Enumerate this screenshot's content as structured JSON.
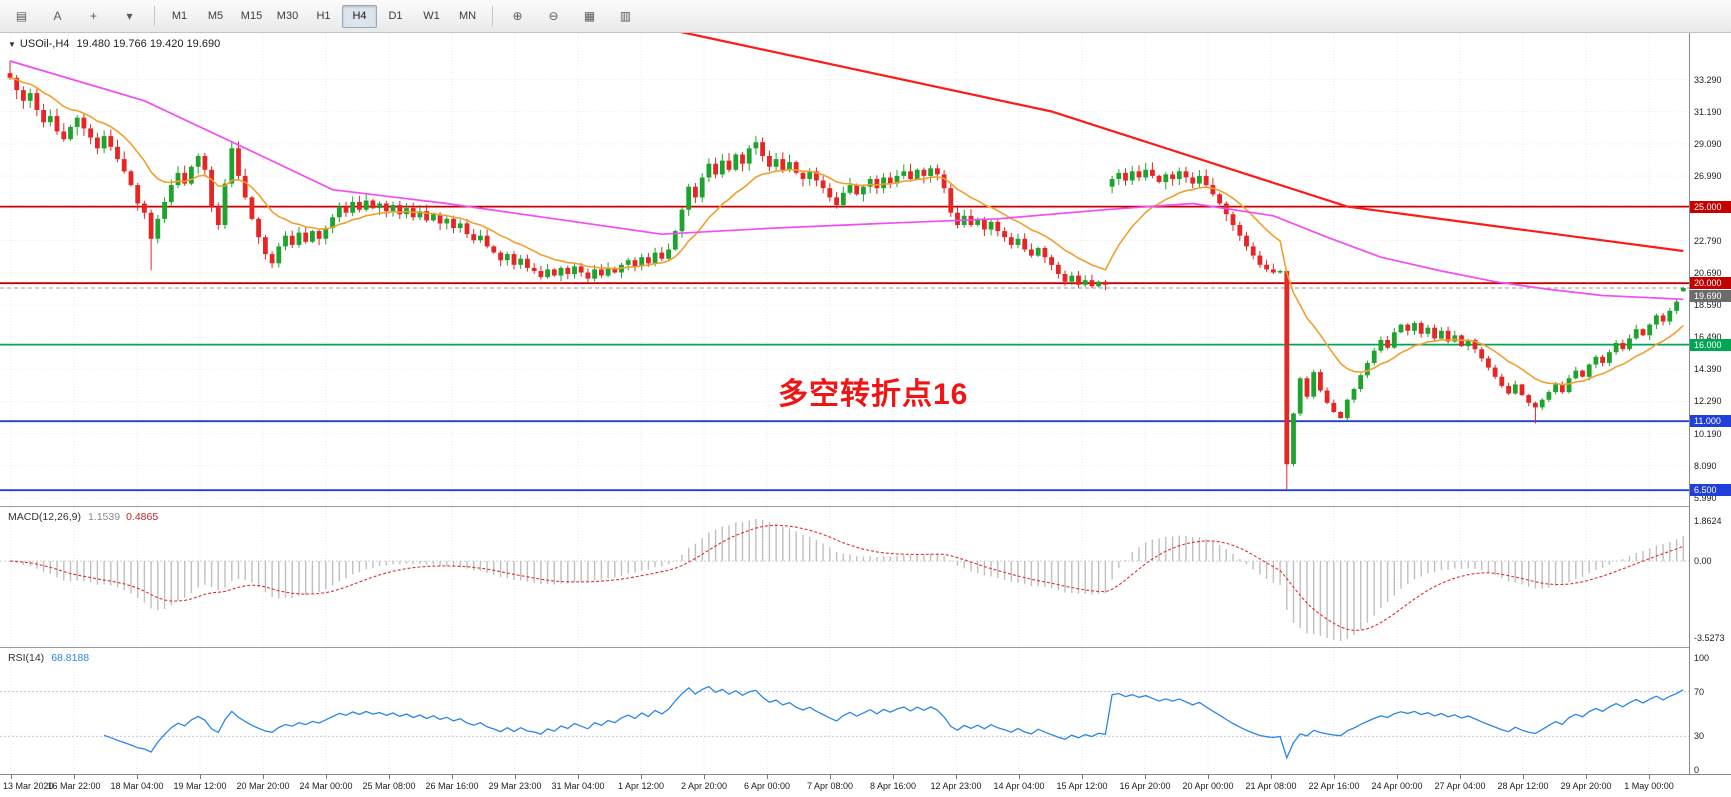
{
  "toolbar": {
    "tools_left": [
      {
        "name": "charts-toolbar-icon",
        "glyph": "▤"
      },
      {
        "name": "text-label-tool-icon",
        "glyph": "A"
      },
      {
        "name": "crosshair-tool-icon",
        "glyph": "+"
      },
      {
        "name": "line-studies-dropdown-icon",
        "glyph": "▾"
      }
    ],
    "timeframes": [
      "M1",
      "M5",
      "M15",
      "M30",
      "H1",
      "H4",
      "D1",
      "W1",
      "MN"
    ],
    "active_timeframe": "H4",
    "tools_right": [
      {
        "name": "zoom-in-icon",
        "glyph": "⊕"
      },
      {
        "name": "zoom-out-icon",
        "glyph": "⊖"
      },
      {
        "name": "indicators-icon",
        "glyph": "▦"
      },
      {
        "name": "templates-icon",
        "glyph": "▥"
      }
    ]
  },
  "chart": {
    "symbol_label": "USOil-,H4",
    "ohlc": "19.480 19.766 19.420 19.690",
    "annotation": "多空转折点16",
    "annotation_color": "#f01414"
  },
  "chart_data": {
    "type": "candlestick",
    "title": "USOil-,H4",
    "x_labels": [
      "13 Mar 2020",
      "16 Mar 22:00",
      "18 Mar 04:00",
      "19 Mar 12:00",
      "20 Mar 20:00",
      "24 Mar 00:00",
      "25 Mar 08:00",
      "26 Mar 16:00",
      "29 Mar 23:00",
      "31 Mar 04:00",
      "1 Apr 12:00",
      "2 Apr 20:00",
      "6 Apr 00:00",
      "7 Apr 08:00",
      "8 Apr 16:00",
      "12 Apr 23:00",
      "14 Apr 04:00",
      "15 Apr 12:00",
      "16 Apr 20:00",
      "20 Apr 00:00",
      "21 Apr 08:00",
      "22 Apr 16:00",
      "24 Apr 00:00",
      "27 Apr 04:00",
      "28 Apr 12:00",
      "29 Apr 20:00",
      "1 May 00:00"
    ],
    "y_ticks": [
      "33.290",
      "31.190",
      "29.090",
      "26.990",
      "24.890",
      "22.790",
      "20.690",
      "18.590",
      "16.490",
      "14.390",
      "12.290",
      "10.190",
      "8.090",
      "5.990"
    ],
    "ylim": [
      5.8,
      36.3
    ],
    "closes": [
      33.4,
      32.6,
      31.9,
      32.4,
      31.3,
      30.5,
      30.9,
      29.9,
      29.4,
      30.2,
      30.8,
      30.1,
      29.5,
      28.8,
      29.6,
      28.9,
      28.1,
      27.3,
      26.4,
      25.2,
      24.6,
      22.9,
      24.2,
      25.3,
      26.4,
      27.2,
      26.5,
      27.6,
      28.3,
      27.4,
      25.0,
      23.8,
      26.5,
      28.8,
      27.0,
      25.6,
      24.2,
      23.0,
      21.9,
      21.3,
      22.4,
      23.1,
      22.5,
      23.3,
      22.7,
      23.4,
      22.9,
      23.6,
      24.3,
      25.0,
      24.6,
      25.3,
      24.8,
      25.4,
      24.9,
      25.2,
      24.7,
      25.1,
      24.5,
      24.9,
      24.3,
      24.7,
      24.1,
      24.5,
      23.9,
      24.2,
      23.6,
      23.9,
      23.2,
      22.8,
      23.1,
      22.4,
      22.0,
      21.5,
      21.9,
      21.2,
      21.6,
      21.0,
      20.8,
      20.4,
      20.9,
      20.5,
      21.0,
      20.6,
      21.1,
      20.7,
      20.3,
      20.9,
      20.5,
      21.0,
      20.7,
      21.2,
      21.5,
      21.1,
      21.7,
      21.3,
      22.0,
      21.6,
      22.2,
      23.4,
      24.8,
      26.3,
      25.6,
      26.9,
      27.8,
      27.1,
      28.0,
      27.4,
      28.4,
      27.8,
      28.8,
      29.2,
      28.3,
      27.6,
      28.1,
      27.4,
      27.9,
      27.2,
      26.8,
      27.3,
      26.7,
      26.2,
      25.6,
      25.1,
      25.9,
      26.4,
      25.8,
      26.3,
      26.8,
      26.2,
      26.9,
      26.5,
      27.0,
      27.3,
      26.8,
      27.4,
      27.0,
      27.5,
      27.1,
      26.2,
      24.6,
      23.8,
      24.4,
      23.8,
      24.2,
      23.5,
      24.0,
      23.4,
      23.0,
      22.5,
      22.9,
      22.2,
      21.8,
      22.3,
      21.7,
      21.2,
      20.6,
      20.1,
      20.5,
      19.9,
      20.2,
      19.8,
      20.1,
      19.9,
      26.8,
      27.2,
      26.7,
      27.3,
      26.9,
      27.4,
      27.0,
      26.6,
      27.1,
      26.8,
      27.3,
      26.9,
      26.5,
      27.0,
      26.4,
      25.8,
      25.2,
      24.5,
      23.8,
      23.1,
      22.4,
      21.8,
      21.2,
      20.9,
      20.7,
      20.8,
      8.2,
      11.5,
      13.8,
      12.6,
      14.2,
      13.0,
      12.2,
      11.6,
      11.2,
      12.4,
      13.1,
      14.0,
      14.8,
      15.6,
      16.3,
      15.8,
      16.8,
      17.3,
      16.9,
      17.4,
      16.7,
      17.1,
      16.4,
      16.9,
      16.2,
      16.6,
      15.9,
      16.3,
      15.7,
      15.1,
      14.5,
      13.9,
      13.3,
      12.8,
      13.4,
      12.7,
      12.2,
      11.9,
      12.4,
      12.9,
      13.4,
      12.9,
      13.8,
      14.3,
      13.9,
      14.7,
      15.2,
      14.8,
      15.5,
      16.1,
      15.7,
      16.4,
      17.0,
      16.6,
      17.3,
      17.9,
      17.5,
      18.2,
      18.8,
      19.69
    ],
    "overrides": {
      "0": {
        "h": 34.5
      },
      "21": {
        "l": 20.85
      },
      "111": {
        "h": 29.62
      },
      "164": {
        "o": 26.3
      },
      "190": {
        "l": 6.56
      },
      "227": {
        "l": 10.85
      },
      "249": {
        "o": 19.48,
        "h": 19.766,
        "l": 19.42
      }
    },
    "candle_colors": {
      "up": "#1ea32e",
      "down": "#e62525"
    },
    "hlines": [
      {
        "value": 25.0,
        "label": "25.000",
        "color": "#c40000"
      },
      {
        "value": 20.0,
        "label": "20.000",
        "color": "#c40000"
      },
      {
        "value": 16.0,
        "label": "16.000",
        "color": "#00a651"
      },
      {
        "value": 11.0,
        "label": "11.000",
        "color": "#1f3fd8"
      },
      {
        "value": 6.5,
        "label": "6.500",
        "color": "#1f3fd8"
      }
    ],
    "current_price": {
      "value": 19.69,
      "label": "19.690",
      "color": "#6b6b6b"
    },
    "overlays": {
      "ma_fast": {
        "name": "fast-ma",
        "color": "#f0a030",
        "type": "ema",
        "period": 13
      },
      "ma_mid": {
        "name": "mid-ma",
        "color": "#f24df2",
        "keypoints": [
          [
            0,
            34.5
          ],
          [
            20,
            31.9
          ],
          [
            37,
            28.4
          ],
          [
            48,
            26.1
          ],
          [
            65,
            25.2
          ],
          [
            81,
            24.2
          ],
          [
            97,
            23.2
          ],
          [
            114,
            23.6
          ],
          [
            130,
            23.9
          ],
          [
            147,
            24.2
          ],
          [
            163,
            24.8
          ],
          [
            176,
            25.2
          ],
          [
            188,
            24.4
          ],
          [
            196,
            23.0
          ],
          [
            204,
            21.7
          ],
          [
            213,
            20.8
          ],
          [
            221,
            20.1
          ],
          [
            229,
            19.6
          ],
          [
            237,
            19.2
          ],
          [
            249,
            18.95
          ]
        ]
      },
      "ma_long": {
        "name": "long-ma",
        "color": "#ff1a1a",
        "keypoints": [
          [
            88,
            37.5
          ],
          [
            104,
            36.0
          ],
          [
            155,
            31.2
          ],
          [
            199,
            25.0
          ],
          [
            249,
            22.1
          ]
        ]
      }
    },
    "macd": {
      "label": "MACD(12,26,9)",
      "value_main": "1.1539",
      "value_signal": "0.4865",
      "fast": 12,
      "slow": 26,
      "signal": 9,
      "scale_labels": [
        "1.8624",
        "0.00",
        "-3.5273"
      ],
      "histogram_color": "#bfbfbf",
      "signal_color": "#e03030"
    },
    "rsi": {
      "label": "RSI(14)",
      "value": "68.8188",
      "period": 14,
      "levels": [
        "100",
        "70",
        "30",
        "0"
      ],
      "line_color": "#2a86e8"
    }
  }
}
